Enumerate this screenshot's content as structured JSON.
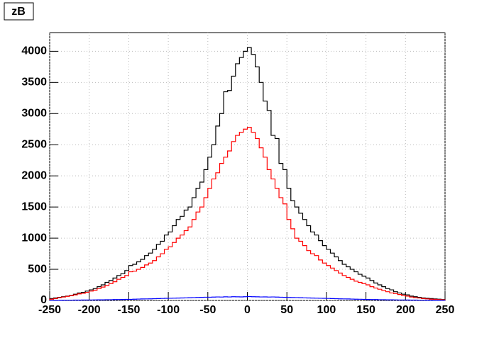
{
  "chart_data": {
    "type": "histogram",
    "title": "zB",
    "bins": [
      -250,
      -245,
      -240,
      -235,
      -230,
      -225,
      -220,
      -215,
      -210,
      -205,
      -200,
      -195,
      -190,
      -185,
      -180,
      -175,
      -170,
      -165,
      -160,
      -155,
      -150,
      -145,
      -140,
      -135,
      -130,
      -125,
      -120,
      -115,
      -110,
      -105,
      -100,
      -95,
      -90,
      -85,
      -80,
      -75,
      -70,
      -65,
      -60,
      -55,
      -50,
      -45,
      -40,
      -35,
      -30,
      -25,
      -20,
      -15,
      -10,
      -5,
      0,
      5,
      10,
      15,
      20,
      25,
      30,
      35,
      40,
      45,
      50,
      55,
      60,
      65,
      70,
      75,
      80,
      85,
      90,
      95,
      100,
      105,
      110,
      115,
      120,
      125,
      130,
      135,
      140,
      145,
      150,
      155,
      160,
      165,
      170,
      175,
      180,
      185,
      190,
      195,
      200,
      205,
      210,
      215,
      220,
      225,
      230,
      235,
      240,
      245,
      250
    ],
    "series": [
      {
        "color": "#000000",
        "values": [
          30,
          40,
          50,
          60,
          70,
          80,
          100,
          120,
          130,
          150,
          170,
          190,
          220,
          250,
          290,
          320,
          360,
          400,
          430,
          480,
          560,
          580,
          620,
          660,
          720,
          760,
          820,
          900,
          950,
          1050,
          1100,
          1200,
          1300,
          1350,
          1450,
          1500,
          1650,
          1800,
          1900,
          2100,
          2300,
          2500,
          2800,
          3000,
          3350,
          3370,
          3600,
          3800,
          3900,
          4000,
          4060,
          3950,
          3750,
          3500,
          3200,
          3050,
          2650,
          2600,
          2200,
          2100,
          1800,
          1600,
          1500,
          1400,
          1300,
          1200,
          1100,
          1050,
          960,
          880,
          820,
          760,
          700,
          640,
          580,
          540,
          500,
          460,
          420,
          390,
          360,
          320,
          280,
          250,
          220,
          190,
          170,
          140,
          120,
          100,
          90,
          70,
          60,
          50,
          40,
          35,
          30,
          25,
          20,
          15
        ]
      },
      {
        "color": "#ff0000",
        "values": [
          20,
          30,
          45,
          55,
          65,
          75,
          90,
          105,
          115,
          130,
          150,
          165,
          190,
          215,
          240,
          270,
          300,
          340,
          370,
          400,
          460,
          470,
          500,
          530,
          570,
          600,
          640,
          700,
          750,
          820,
          860,
          930,
          1000,
          1050,
          1120,
          1180,
          1300,
          1420,
          1500,
          1650,
          1800,
          1950,
          2050,
          2200,
          2300,
          2400,
          2550,
          2650,
          2700,
          2750,
          2780,
          2700,
          2600,
          2450,
          2300,
          2100,
          1950,
          1800,
          1650,
          1550,
          1300,
          1150,
          1000,
          950,
          880,
          800,
          750,
          720,
          650,
          600,
          560,
          520,
          480,
          440,
          400,
          370,
          340,
          310,
          290,
          270,
          250,
          220,
          200,
          180,
          160,
          140,
          120,
          110,
          95,
          80,
          70,
          55,
          45,
          40,
          30,
          25,
          20,
          18,
          15,
          10
        ]
      },
      {
        "color": "#0000ff",
        "values": [
          2,
          3,
          3,
          4,
          5,
          5,
          6,
          6,
          7,
          8,
          8,
          9,
          10,
          10,
          12,
          12,
          14,
          15,
          16,
          18,
          18,
          20,
          22,
          24,
          25,
          26,
          28,
          30,
          32,
          34,
          35,
          36,
          38,
          40,
          42,
          44,
          46,
          48,
          50,
          52,
          52,
          54,
          56,
          55,
          58,
          56,
          60,
          58,
          57,
          60,
          62,
          60,
          58,
          56,
          57,
          55,
          56,
          54,
          52,
          50,
          48,
          47,
          46,
          44,
          42,
          40,
          38,
          36,
          35,
          34,
          32,
          30,
          28,
          26,
          25,
          24,
          22,
          20,
          19,
          18,
          16,
          15,
          14,
          12,
          12,
          10,
          10,
          9,
          8,
          8,
          7,
          6,
          6,
          5,
          5,
          4,
          4,
          3,
          3,
          2
        ]
      }
    ],
    "xlim": [
      -250,
      250
    ],
    "ylim": [
      0,
      4300
    ],
    "xticks": [
      -250,
      -200,
      -150,
      -100,
      -50,
      0,
      50,
      100,
      150,
      200,
      250
    ],
    "yticks": [
      0,
      500,
      1000,
      1500,
      2000,
      2500,
      3000,
      3500,
      4000
    ],
    "grid": true
  }
}
